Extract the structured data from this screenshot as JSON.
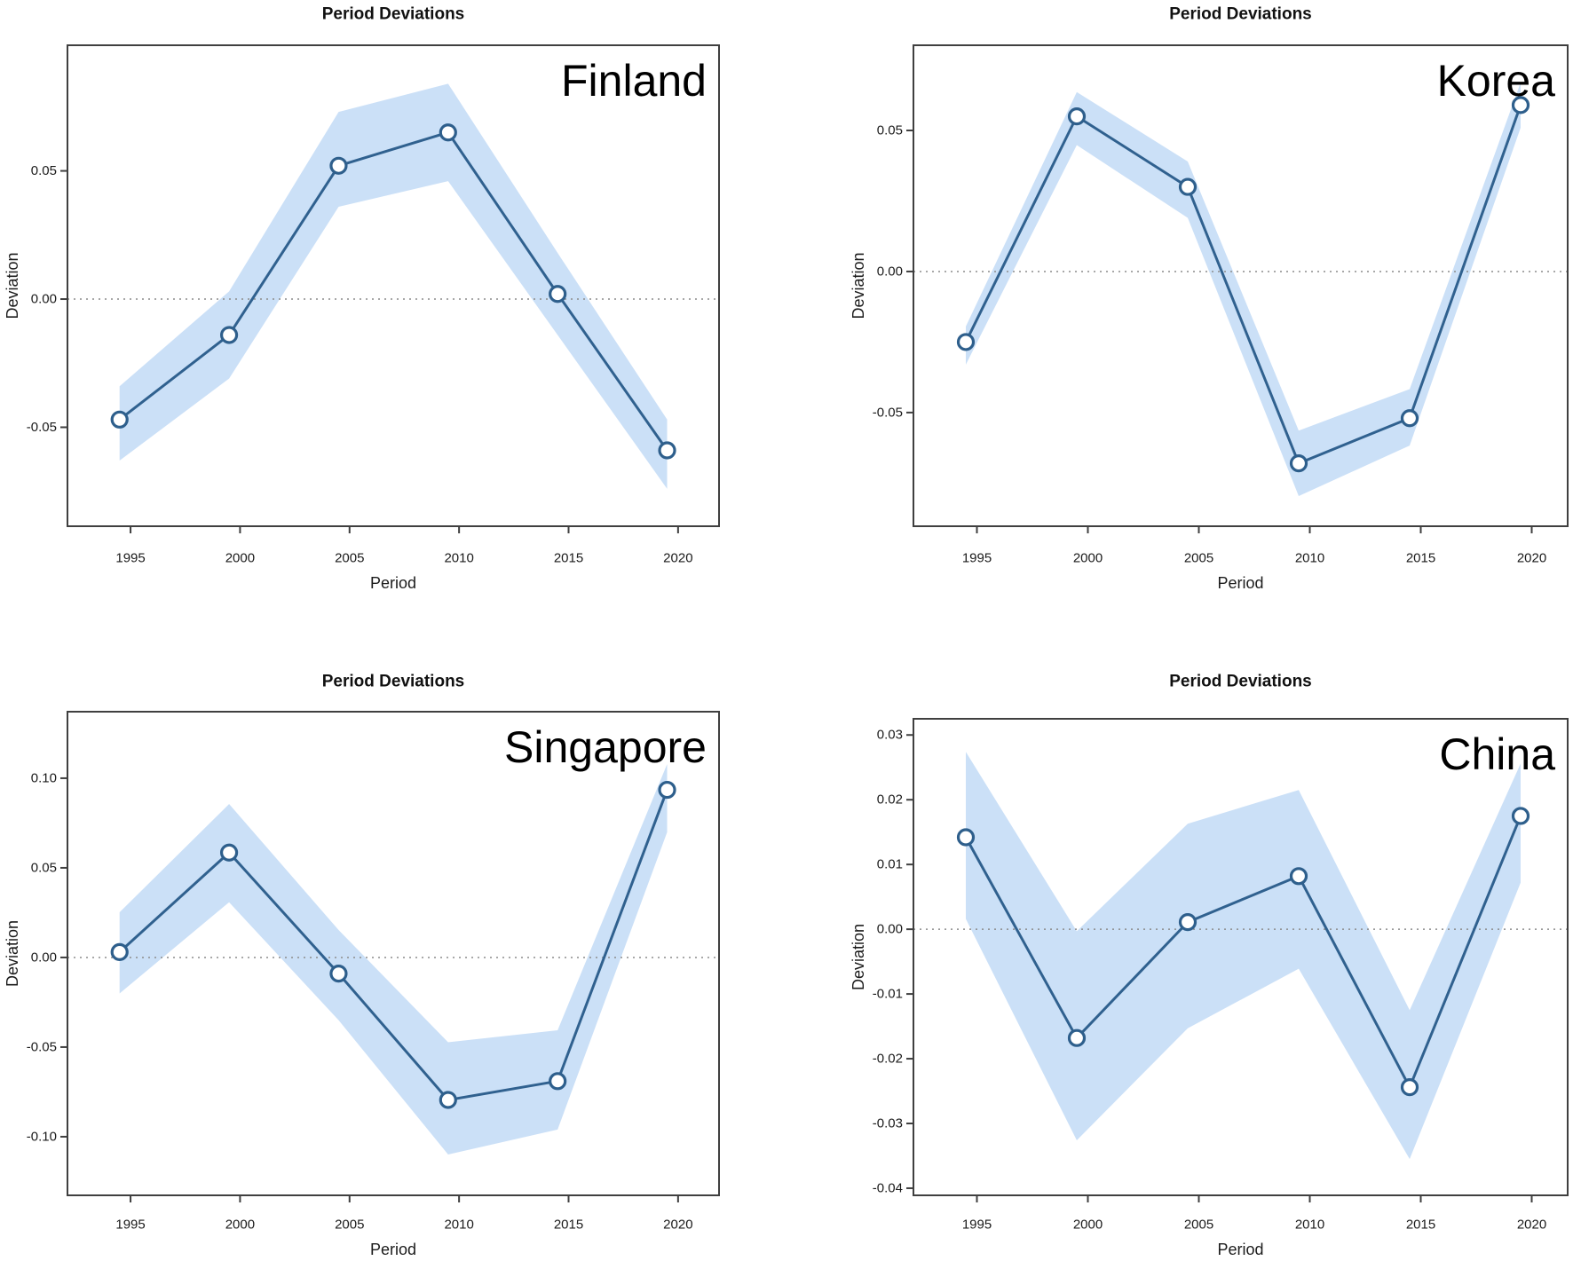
{
  "page": {
    "background": "#ffffff"
  },
  "colors": {
    "band": "#CBE0F7",
    "line": "#30618F",
    "marker_fill": "#FFFFFF",
    "marker_stroke": "#2E5F8C",
    "zero_line": "#8C8C8C",
    "box_border": "#3F3F3F",
    "text": "#1B1B1B",
    "title": "#111111"
  },
  "chart_data": [
    {
      "type": "line",
      "country": "Finland",
      "title": "Period Deviations",
      "xlabel": "Period",
      "ylabel": "Deviation",
      "x": [
        1994.5,
        1999.5,
        2004.5,
        2009.5,
        2014.5,
        2019.5
      ],
      "series": [
        {
          "name": "period-deviation",
          "values": [
            -0.047,
            -0.014,
            0.052,
            0.065,
            0.002,
            -0.059
          ]
        }
      ],
      "band_upper": [
        -0.034,
        0.003,
        0.073,
        0.084,
        0.018,
        -0.047
      ],
      "band_lower": [
        -0.063,
        -0.031,
        0.036,
        0.046,
        -0.014,
        -0.074
      ],
      "xticks": [
        1995,
        2000,
        2005,
        2010,
        2015,
        2020
      ],
      "xtick_labels": [
        "1995",
        "2000",
        "2005",
        "2010",
        "2015",
        "2020"
      ],
      "yticks": [
        0.05,
        0.0,
        -0.05
      ],
      "ytick_labels": [
        "0.05",
        "0.00",
        "-0.05"
      ],
      "xlim": [
        1992.12,
        2021.87
      ],
      "ylim": [
        -0.0886,
        0.099
      ],
      "zero_line": true,
      "grid": false,
      "legend": "none"
    },
    {
      "type": "line",
      "country": "Korea",
      "title": "Period Deviations",
      "xlabel": "Period",
      "ylabel": "Deviation",
      "x": [
        1994.5,
        1999.5,
        2004.5,
        2009.5,
        2014.5,
        2019.5
      ],
      "series": [
        {
          "name": "period-deviation",
          "values": [
            -0.025,
            0.055,
            0.03,
            -0.068,
            -0.052,
            0.059
          ]
        }
      ],
      "band_upper": [
        -0.0195,
        0.0636,
        0.039,
        -0.0564,
        -0.0417,
        0.067
      ],
      "band_lower": [
        -0.033,
        0.0448,
        0.019,
        -0.0796,
        -0.0617,
        0.051
      ],
      "xticks": [
        1995,
        2000,
        2005,
        2010,
        2015,
        2020
      ],
      "xtick_labels": [
        "1995",
        "2000",
        "2005",
        "2010",
        "2015",
        "2020"
      ],
      "yticks": [
        0.05,
        0.0,
        -0.05
      ],
      "ytick_labels": [
        "0.05",
        "0.00",
        "-0.05"
      ],
      "xlim": [
        1992.14,
        2021.62
      ],
      "ylim": [
        -0.0903,
        0.0802
      ],
      "zero_line": true,
      "grid": false,
      "legend": "none"
    },
    {
      "type": "line",
      "country": "Singapore",
      "title": "Period Deviations",
      "xlabel": "Period",
      "ylabel": "Deviation",
      "x": [
        1994.5,
        1999.5,
        2004.5,
        2009.5,
        2014.5,
        2019.5
      ],
      "series": [
        {
          "name": "period-deviation",
          "values": [
            0.003,
            0.0585,
            -0.009,
            -0.0795,
            -0.069,
            0.0935
          ]
        }
      ],
      "band_upper": [
        0.0252,
        0.0856,
        0.0153,
        -0.0473,
        -0.0406,
        0.1079
      ],
      "band_lower": [
        -0.0201,
        0.0308,
        -0.035,
        -0.1099,
        -0.096,
        0.0699
      ],
      "xticks": [
        1995,
        2000,
        2005,
        2010,
        2015,
        2020
      ],
      "xtick_labels": [
        "1995",
        "2000",
        "2005",
        "2010",
        "2015",
        "2020"
      ],
      "yticks": [
        0.1,
        0.05,
        0.0,
        -0.05,
        -0.1
      ],
      "ytick_labels": [
        "0.10",
        "0.05",
        "0.00",
        "-0.05",
        "-0.10"
      ],
      "xlim": [
        1992.12,
        2021.87
      ],
      "ylim": [
        -0.1327,
        0.1371
      ],
      "zero_line": true,
      "grid": false,
      "legend": "none"
    },
    {
      "type": "line",
      "country": "China",
      "title": "Period Deviations",
      "xlabel": "Period",
      "ylabel": "Deviation",
      "x": [
        1994.5,
        1999.5,
        2004.5,
        2009.5,
        2014.5,
        2019.5
      ],
      "series": [
        {
          "name": "period-deviation",
          "values": [
            0.0142,
            -0.0168,
            0.0011,
            0.0082,
            -0.0244,
            0.0175
          ]
        }
      ],
      "band_upper": [
        0.0274,
        -0.0003,
        0.0163,
        0.0215,
        -0.0125,
        0.0256
      ],
      "band_lower": [
        0.0016,
        -0.0326,
        -0.0153,
        -0.0061,
        -0.0355,
        0.0072
      ],
      "xticks": [
        1995,
        2000,
        2005,
        2010,
        2015,
        2020
      ],
      "xtick_labels": [
        "1995",
        "2000",
        "2005",
        "2010",
        "2015",
        "2020"
      ],
      "yticks": [
        0.03,
        0.02,
        0.01,
        0.0,
        -0.01,
        -0.02,
        -0.03,
        -0.04
      ],
      "ytick_labels": [
        "0.03",
        "0.02",
        "0.01",
        "0.00",
        "-0.01",
        "-0.02",
        "-0.03",
        "-0.04"
      ],
      "xlim": [
        1992.14,
        2021.62
      ],
      "ylim": [
        -0.0411,
        0.0325
      ],
      "zero_line": true,
      "grid": false,
      "legend": "none"
    }
  ]
}
